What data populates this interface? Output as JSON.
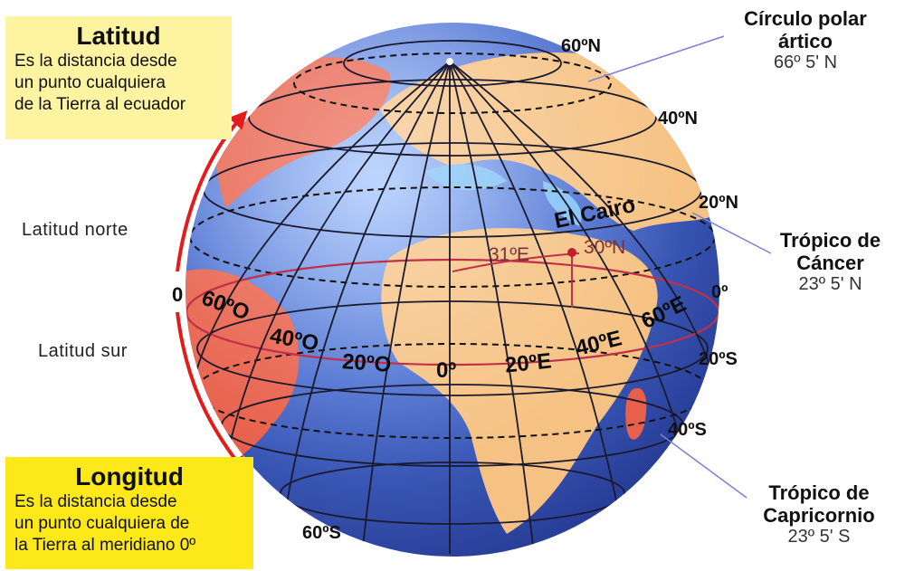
{
  "latitud_box": {
    "title": "Latitud",
    "text": "Es la distancia desde\nun punto cualquiera\nde la Tierra al ecuador"
  },
  "longitud_box": {
    "title": "Longitud",
    "text": "Es la distancia desde\nun punto cualquiera de\nla Tierra al meridiano 0º"
  },
  "side_labels": {
    "north": "Latitud norte",
    "zero": "0",
    "south": "Latitud sur"
  },
  "latitude_labels": {
    "n60": "60ºN",
    "n40": "40ºN",
    "n20": "20ºN",
    "eq": "0º",
    "s20": "20ºS",
    "s40": "40ºS",
    "s60": "60ºS"
  },
  "longitude_labels": {
    "w60": "60ºO",
    "w40": "40ºO",
    "w20": "20ºO",
    "m0": "0º",
    "e20": "20ºE",
    "e40": "40ºE",
    "e60": "60ºE"
  },
  "cairo": {
    "name": "El Cairo",
    "lon": "31ºE",
    "lat": "30ºN"
  },
  "callouts": {
    "arctic": {
      "title": "Círculo polar\nártico",
      "value": "66º 5' N"
    },
    "cancer": {
      "title": "Trópico de\nCáncer",
      "value": "23º 5' N"
    },
    "capricorn": {
      "title": "Trópico de\nCapricornio",
      "value": "23º 5' S"
    }
  },
  "colors": {
    "ocean": "#3d5fc4",
    "land_warm": "#f6c283",
    "land_red": "#e8604a",
    "arrow": "#e21b1b",
    "leader": "#7a80d8"
  }
}
